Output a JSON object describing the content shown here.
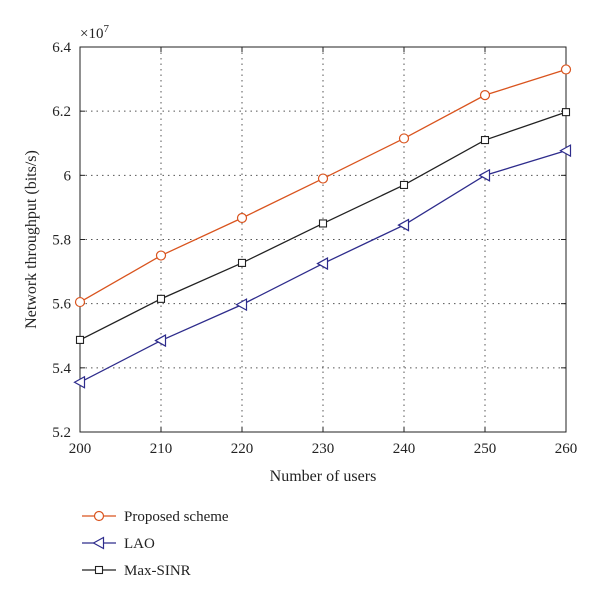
{
  "chart_data": {
    "type": "line",
    "xlabel": "Number of users",
    "ylabel": "Network throughput (bits/s)",
    "y_multiplier_base": "×10",
    "y_multiplier_exp": "7",
    "xlim": [
      200,
      260
    ],
    "ylim": [
      5.2,
      6.4
    ],
    "x_ticks": [
      "200",
      "210",
      "220",
      "230",
      "240",
      "250",
      "260"
    ],
    "y_ticks": [
      "5.2",
      "5.4",
      "5.6",
      "5.8",
      "6",
      "6.2",
      "6.4"
    ],
    "grid": true,
    "legend_position": "bottom",
    "x": [
      200,
      210,
      220,
      230,
      240,
      250,
      260
    ],
    "series": [
      {
        "name": "Proposed scheme",
        "marker": "circle",
        "color": "#d9541e",
        "values": [
          5.605,
          5.75,
          5.867,
          5.99,
          6.115,
          6.25,
          6.33
        ]
      },
      {
        "name": "LAO",
        "marker": "triangle-left",
        "color": "#2e2c8c",
        "values": [
          5.355,
          5.485,
          5.597,
          5.725,
          5.845,
          6.0,
          6.077
        ]
      },
      {
        "name": "Max-SINR",
        "marker": "square",
        "color": "#222222",
        "values": [
          5.487,
          5.615,
          5.727,
          5.85,
          5.97,
          6.11,
          6.197
        ]
      }
    ]
  }
}
